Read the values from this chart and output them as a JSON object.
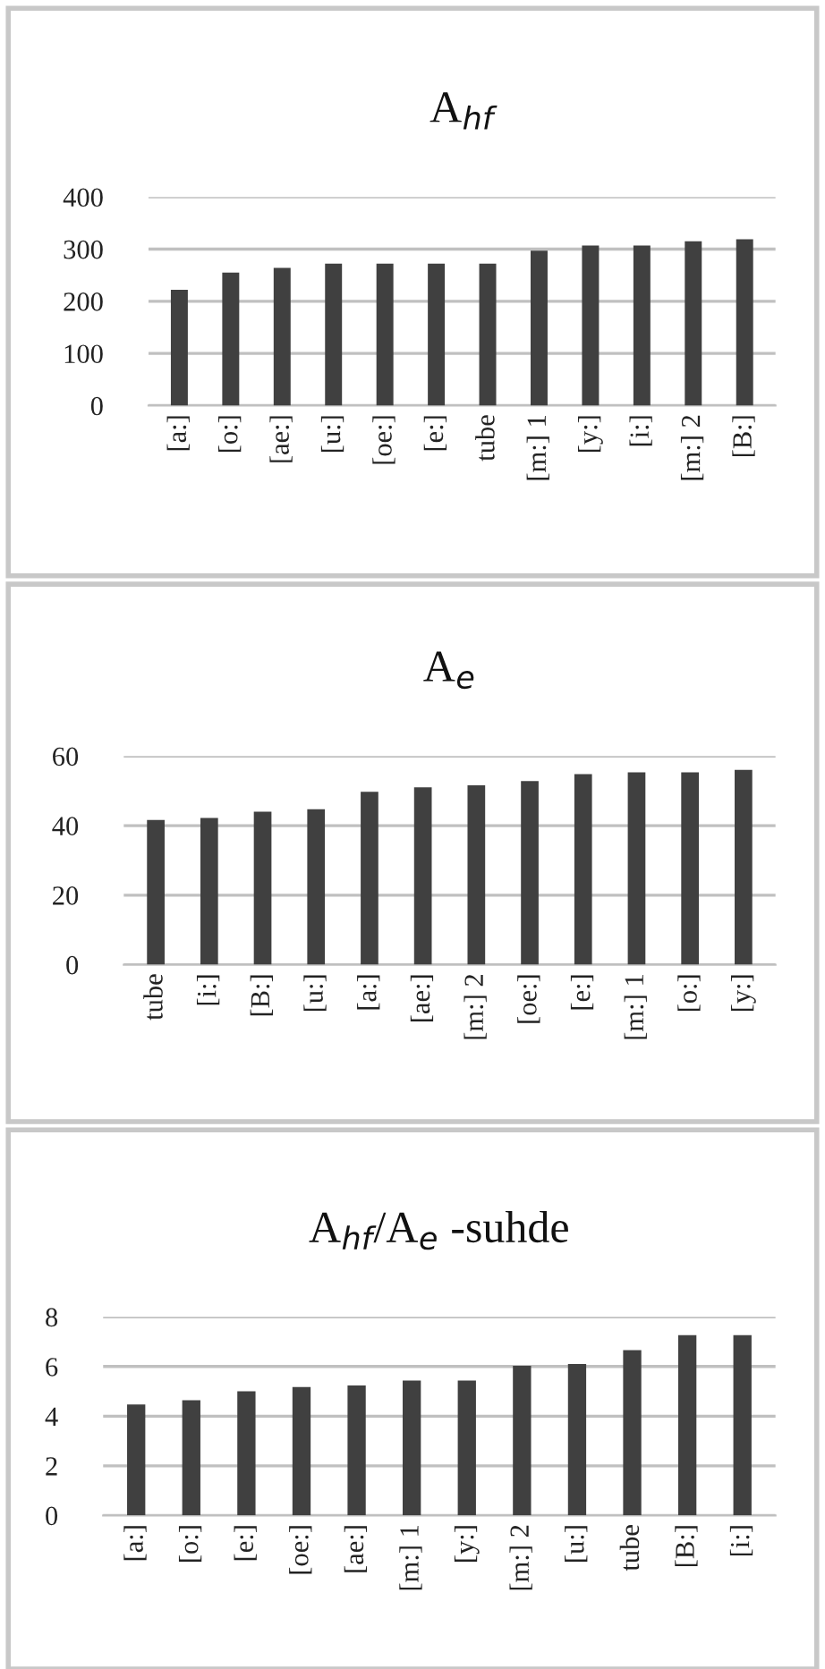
{
  "chart_data": [
    {
      "type": "bar",
      "title": "A$_{hf}$",
      "categories": [
        "[a:]",
        "[o:]",
        "[ae:]",
        "[u:]",
        "[oe:]",
        "[e:]",
        "tube",
        "[m:] 1",
        "[y:]",
        "[i:]",
        "[m:] 2",
        "[B:]"
      ],
      "values": [
        222,
        255,
        264,
        272,
        272,
        272,
        272,
        297,
        307,
        307,
        315,
        319
      ],
      "color": "#404040",
      "ylim": [
        0,
        400
      ],
      "yticks": [
        0,
        100,
        200,
        300,
        400
      ],
      "grid": "y"
    },
    {
      "type": "bar",
      "title": "A$_{e}$",
      "categories": [
        "tube",
        "[i:]",
        "[B:]",
        "[u:]",
        "[a:]",
        "[ae:]",
        "[m:] 2",
        "[oe:]",
        "[e:]",
        "[m:] 1",
        "[o:]",
        "[y:]"
      ],
      "values": [
        41.6,
        42.2,
        44.0,
        44.7,
        49.7,
        51.0,
        51.6,
        52.8,
        54.8,
        55.3,
        55.3,
        56.0
      ],
      "color": "#404040",
      "ylim": [
        0,
        60
      ],
      "yticks": [
        0,
        20,
        40,
        60
      ],
      "grid": "y"
    },
    {
      "type": "bar",
      "title": "A$_{hf}$/A$_{e}$ -suhde",
      "categories": [
        "[a:]",
        "[o:]",
        "[e:]",
        "[oe:]",
        "[ae:]",
        "[m:] 1",
        "[y:]",
        "[m:] 2",
        "[u:]",
        "tube",
        "[B:]",
        "[i:]"
      ],
      "values": [
        4.47,
        4.64,
        5.0,
        5.17,
        5.24,
        5.43,
        5.43,
        6.03,
        6.1,
        6.66,
        7.26,
        7.26
      ],
      "color": "#404040",
      "ylim": [
        0,
        8
      ],
      "yticks": [
        0,
        2,
        4,
        6,
        8
      ],
      "grid": "y"
    }
  ]
}
